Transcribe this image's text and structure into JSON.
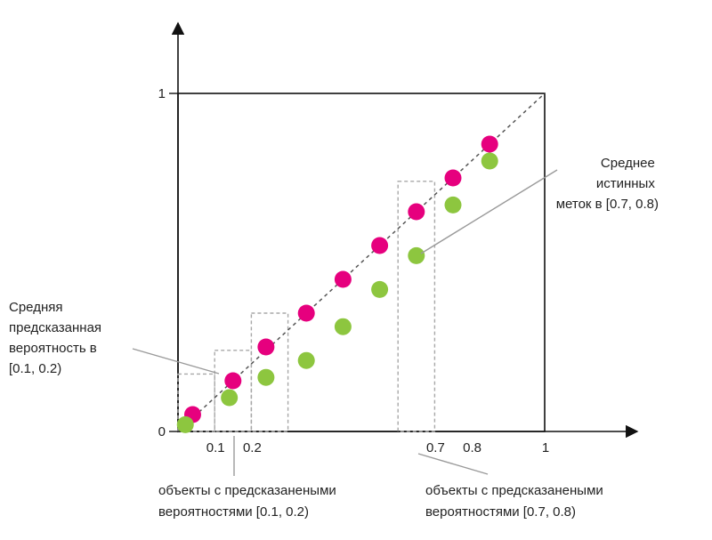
{
  "chart_data": {
    "type": "scatter",
    "xlim": [
      0,
      1
    ],
    "ylim": [
      0,
      1
    ],
    "grid": false,
    "x_ticks": [
      "0.1",
      "0.2",
      "0.7",
      "0.8",
      "1"
    ],
    "x_tick_values": [
      0.1,
      0.2,
      0.7,
      0.8,
      1
    ],
    "y_ticks": [
      "0",
      "1"
    ],
    "y_tick_values": [
      0,
      1
    ],
    "diagonal": {
      "from": [
        0,
        0
      ],
      "to": [
        1,
        1
      ],
      "style": "dashed"
    },
    "series": [
      {
        "color": "#e6007e",
        "points": [
          [
            0.04,
            0.05
          ],
          [
            0.15,
            0.15
          ],
          [
            0.24,
            0.25
          ],
          [
            0.35,
            0.35
          ],
          [
            0.45,
            0.45
          ],
          [
            0.55,
            0.55
          ],
          [
            0.65,
            0.65
          ],
          [
            0.75,
            0.75
          ],
          [
            0.85,
            0.85
          ]
        ]
      },
      {
        "color": "#8dc63f",
        "points": [
          [
            0.02,
            0.02
          ],
          [
            0.14,
            0.1
          ],
          [
            0.24,
            0.16
          ],
          [
            0.35,
            0.21
          ],
          [
            0.45,
            0.31
          ],
          [
            0.55,
            0.42
          ],
          [
            0.65,
            0.52
          ],
          [
            0.75,
            0.67
          ],
          [
            0.85,
            0.8
          ]
        ]
      }
    ],
    "bins": [
      {
        "x": [
          0.0,
          0.1
        ],
        "y": [
          0,
          0.17
        ]
      },
      {
        "x": [
          0.1,
          0.2
        ],
        "y": [
          0,
          0.24
        ]
      },
      {
        "x": [
          0.2,
          0.3
        ],
        "y": [
          0,
          0.35
        ]
      },
      {
        "x": [
          0.6,
          0.7
        ],
        "y": [
          0,
          0.74
        ]
      }
    ],
    "annotations": [
      {
        "id": "pred_mean",
        "lines": [
          "Средняя",
          "предсказанная",
          "вероятность в",
          "[0.1, 0.2)"
        ]
      },
      {
        "id": "true_mean",
        "lines": [
          "Среднее",
          "истинных",
          "меток в [0.7, 0.8)"
        ]
      },
      {
        "id": "objects_01",
        "lines": [
          "объекты с предсказанеными",
          "вероятностями [0.1, 0.2)"
        ]
      },
      {
        "id": "objects_07",
        "lines": [
          "объекты с предсказанеными",
          "вероятностями [0.7, 0.8)"
        ]
      }
    ]
  }
}
